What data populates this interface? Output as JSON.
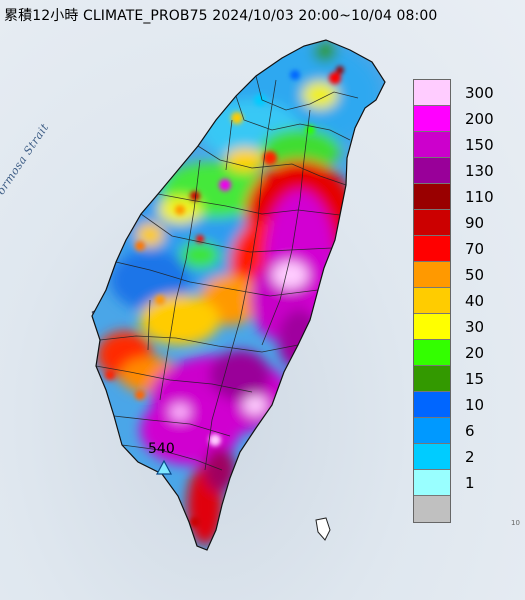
{
  "title": "累積12小時 CLIMATE_PROB75 2024/10/03 20:00~10/04 08:00",
  "sea_label": "Formosa Strait",
  "station_peak": {
    "value": "540",
    "icon": "triangle-station-icon"
  },
  "corner_mark": "10",
  "legend": {
    "colors": [
      "#ffccff",
      "#ff00ff",
      "#cc00cc",
      "#990099",
      "#990000",
      "#cc0000",
      "#ff0000",
      "#ff9900",
      "#ffcc00",
      "#ffff00",
      "#33ff00",
      "#339900",
      "#0066ff",
      "#0099ff",
      "#00ccff",
      "#99ffff",
      "#c0c0c0"
    ],
    "labels": [
      "300",
      "200",
      "150",
      "130",
      "110",
      "90",
      "70",
      "50",
      "40",
      "30",
      "20",
      "15",
      "10",
      "6",
      "2",
      "1"
    ]
  }
}
